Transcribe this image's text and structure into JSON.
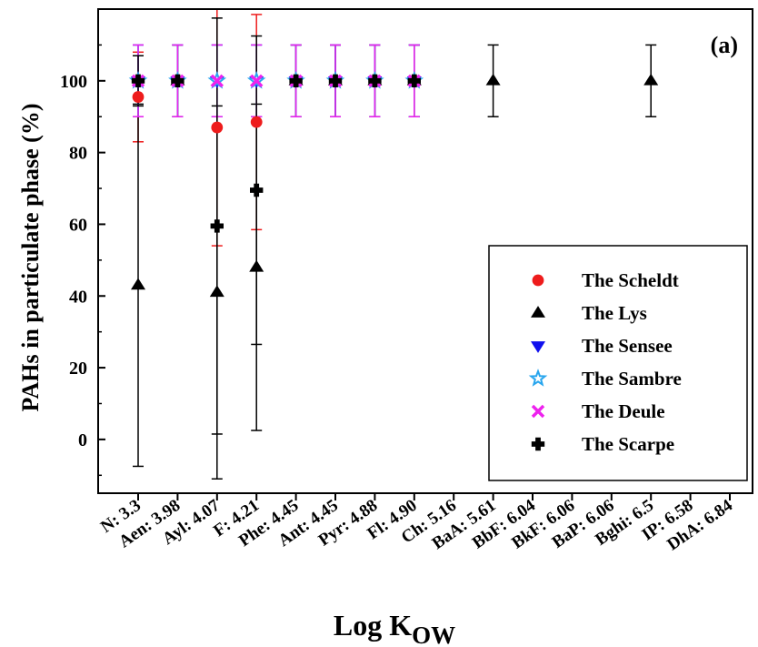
{
  "chart_data": {
    "type": "scatter",
    "panel_label": "(a)",
    "xlabel_main": "Log K",
    "xlabel_sub": "OW",
    "ylabel": "PAHs in particulate phase (%)",
    "ylim": [
      -15,
      120
    ],
    "yticks": [
      0,
      20,
      40,
      60,
      80,
      100
    ],
    "categories": [
      "N: 3.3",
      "Aen: 3.98",
      "Ayl: 4.07",
      "F: 4.21",
      "Phe: 4.45",
      "Ant: 4.45",
      "Pyr: 4.88",
      "Fl: 4.90",
      "Ch: 5.16",
      "BaA: 5.61",
      "BbF: 6.04",
      "BkF: 6.06",
      "BaP: 6.06",
      "Bghi: 6.5",
      "IP: 6.58",
      "DhA: 6.84"
    ],
    "legend_position": "right-middle",
    "series": [
      {
        "name": "The Scheldt",
        "marker": "circle",
        "color": "#ee1c1c",
        "errcolor": "#ee1c1c",
        "points": [
          {
            "i": 0,
            "y": 95.5,
            "err": 12.5
          },
          {
            "i": 1,
            "y": 100,
            "err": 10
          },
          {
            "i": 2,
            "y": 87,
            "err": 33
          },
          {
            "i": 3,
            "y": 88.5,
            "err": 30
          },
          {
            "i": 4,
            "y": 100,
            "err": 10
          },
          {
            "i": 5,
            "y": 100,
            "err": 10
          },
          {
            "i": 6,
            "y": 100,
            "err": 10
          },
          {
            "i": 7,
            "y": 100,
            "err": 10
          }
        ]
      },
      {
        "name": "The Lys",
        "marker": "triangle-up",
        "color": "#000000",
        "errcolor": "#000000",
        "points": [
          {
            "i": 0,
            "y": 43,
            "err": 50.5
          },
          {
            "i": 1,
            "y": 100,
            "err": 10
          },
          {
            "i": 2,
            "y": 41,
            "err": 52
          },
          {
            "i": 3,
            "y": 48,
            "err": 45.5
          },
          {
            "i": 4,
            "y": 100,
            "err": 10
          },
          {
            "i": 5,
            "y": 100,
            "err": 10
          },
          {
            "i": 6,
            "y": 100,
            "err": 10
          },
          {
            "i": 7,
            "y": 100,
            "err": 10
          },
          {
            "i": 9,
            "y": 100,
            "err": 10
          },
          {
            "i": 13,
            "y": 100,
            "err": 10
          }
        ]
      },
      {
        "name": "The Sensee",
        "marker": "triangle-down",
        "color": "#1010ee",
        "errcolor": "#1010ee",
        "points": [
          {
            "i": 0,
            "y": 100,
            "err": 10
          },
          {
            "i": 1,
            "y": 100,
            "err": 10
          },
          {
            "i": 2,
            "y": 100,
            "err": 10
          },
          {
            "i": 3,
            "y": 100,
            "err": 10
          },
          {
            "i": 4,
            "y": 100,
            "err": 10
          },
          {
            "i": 5,
            "y": 100,
            "err": 10
          },
          {
            "i": 6,
            "y": 100,
            "err": 10
          },
          {
            "i": 7,
            "y": 100,
            "err": 10
          }
        ]
      },
      {
        "name": "The Sambre",
        "marker": "star",
        "color": "#29a6ee",
        "errcolor": "#29a6ee",
        "points": [
          {
            "i": 0,
            "y": 100,
            "err": 10
          },
          {
            "i": 1,
            "y": 100,
            "err": 10
          },
          {
            "i": 2,
            "y": 100,
            "err": 10
          },
          {
            "i": 3,
            "y": 100,
            "err": 10
          },
          {
            "i": 4,
            "y": 100,
            "err": 10
          },
          {
            "i": 5,
            "y": 100,
            "err": 10
          },
          {
            "i": 6,
            "y": 100,
            "err": 10
          },
          {
            "i": 7,
            "y": 100,
            "err": 10
          }
        ]
      },
      {
        "name": "The Deule",
        "marker": "x",
        "color": "#ee22ee",
        "errcolor": "#ee22ee",
        "points": [
          {
            "i": 0,
            "y": 100,
            "err": 10
          },
          {
            "i": 1,
            "y": 100,
            "err": 10
          },
          {
            "i": 2,
            "y": 100,
            "err": 10
          },
          {
            "i": 3,
            "y": 100,
            "err": 10
          },
          {
            "i": 4,
            "y": 100,
            "err": 10
          },
          {
            "i": 5,
            "y": 100,
            "err": 10
          },
          {
            "i": 6,
            "y": 100,
            "err": 10
          },
          {
            "i": 7,
            "y": 100,
            "err": 10
          }
        ]
      },
      {
        "name": "The Scarpe",
        "marker": "cross",
        "color": "#000000",
        "errcolor": "#000000",
        "points": [
          {
            "i": 0,
            "y": 100,
            "err": 7
          },
          {
            "i": 1,
            "y": 100,
            "err": 0
          },
          {
            "i": 2,
            "y": 59.5,
            "err": 58
          },
          {
            "i": 3,
            "y": 69.5,
            "err": 43
          },
          {
            "i": 4,
            "y": 100,
            "err": 0
          },
          {
            "i": 5,
            "y": 100,
            "err": 0
          },
          {
            "i": 6,
            "y": 100,
            "err": 0
          },
          {
            "i": 7,
            "y": 100,
            "err": 0
          }
        ]
      }
    ]
  }
}
